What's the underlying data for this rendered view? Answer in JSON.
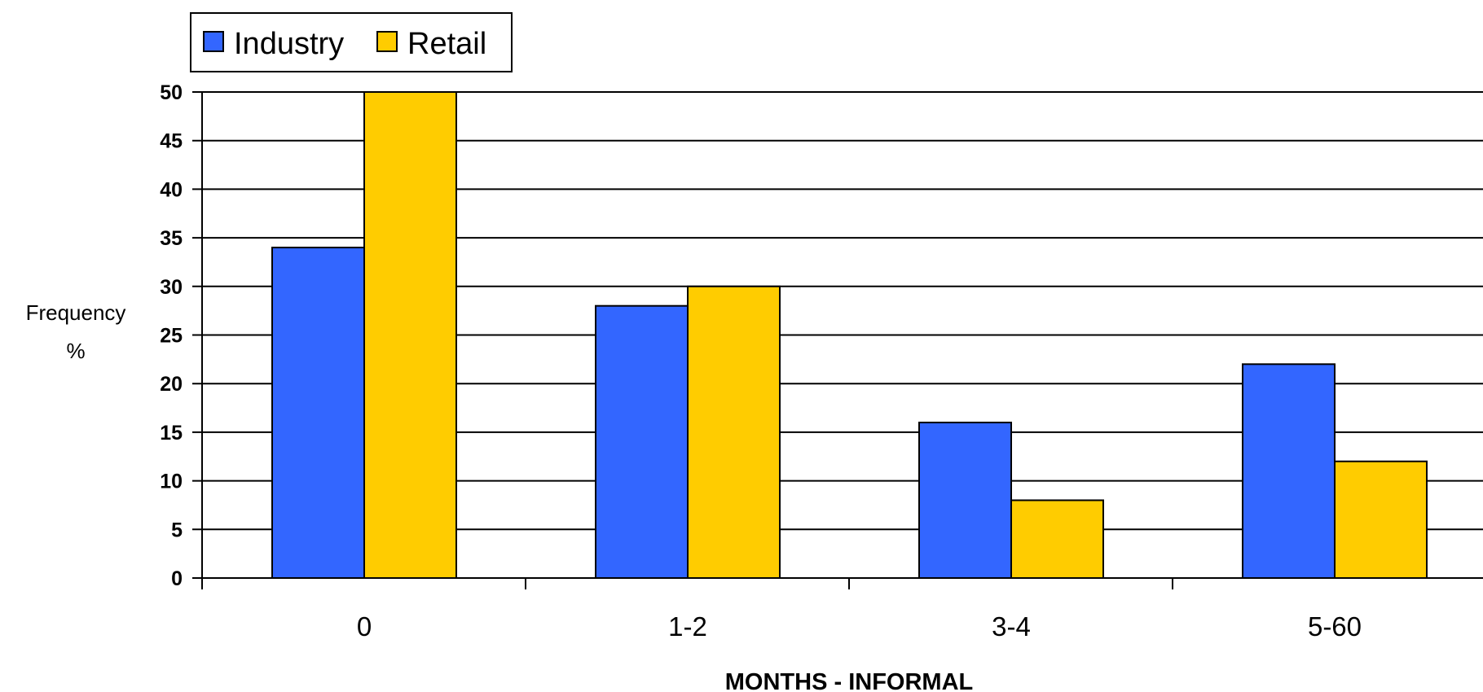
{
  "chart_data": {
    "type": "bar",
    "categories": [
      "0",
      "1-2",
      "3-4",
      "5-60"
    ],
    "series": [
      {
        "name": "Industry",
        "values": [
          34,
          28,
          16,
          22
        ],
        "color": "#3366ff"
      },
      {
        "name": "Retail",
        "values": [
          50,
          30,
          8,
          12
        ],
        "color": "#ffcc00"
      }
    ],
    "title": "",
    "xlabel": "MONTHS - INFORMAL",
    "ylabel_lines": [
      "Frequency",
      "%"
    ],
    "ylim": [
      0,
      50
    ],
    "yticks": [
      0,
      5,
      10,
      15,
      20,
      25,
      30,
      35,
      40,
      45,
      50
    ],
    "grid": true,
    "legend_position": "top-left"
  }
}
